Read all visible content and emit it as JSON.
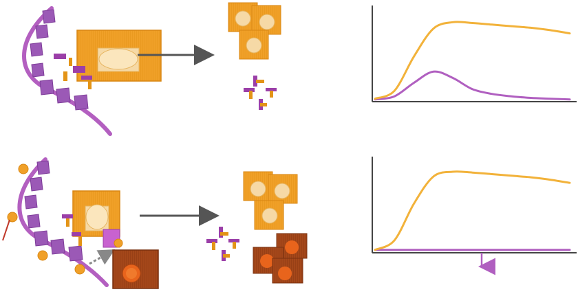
{
  "colors": {
    "strand": "#b35fc0",
    "strand_dark": "#8a3d96",
    "tile_purple": "#9b59b6",
    "orange": "#f0a028",
    "orange_dark": "#d98612",
    "cell_light": "#f6d9a6",
    "brown": "#a4471a",
    "brown_dark": "#7a3210",
    "brown_nucleus": "#e8641c",
    "arrow": "#555555",
    "axis": "#444444",
    "curve_orange": "#f2b23a",
    "curve_purple": "#b05fc0",
    "dotted_arrow": "#888888",
    "marker": "#c0392b"
  },
  "icons": {
    "top_strand": "dna-helix-icon",
    "bottom_strand": "modified-dna-helix-icon",
    "cell": "cell-icon",
    "fragment": "fragment-icon",
    "sphere": "nanoparticle-icon",
    "process_arrow": "right-arrow-icon",
    "down_arrow": "down-arrow-icon"
  },
  "chart_data": [
    {
      "type": "line",
      "x": [
        0,
        1,
        2,
        3,
        4,
        5,
        6,
        7,
        8,
        9,
        10
      ],
      "ylim": [
        0,
        1
      ],
      "series": [
        {
          "color": "#f2b23a",
          "values": [
            0.02,
            0.12,
            0.55,
            0.9,
            0.98,
            0.97,
            0.95,
            0.93,
            0.91,
            0.88,
            0.84
          ]
        },
        {
          "color": "#b05fc0",
          "values": [
            0.01,
            0.05,
            0.22,
            0.36,
            0.28,
            0.14,
            0.08,
            0.05,
            0.03,
            0.02,
            0.01
          ]
        }
      ]
    },
    {
      "type": "line",
      "x": [
        0,
        1,
        2,
        3,
        4,
        5,
        6,
        7,
        8,
        9,
        10
      ],
      "ylim": [
        0,
        1
      ],
      "series": [
        {
          "color": "#f2b23a",
          "values": [
            0.02,
            0.14,
            0.6,
            0.94,
            1.0,
            0.99,
            0.97,
            0.95,
            0.93,
            0.9,
            0.86
          ]
        },
        {
          "color": "#b05fc0",
          "values": [
            0.02,
            0.02,
            0.02,
            0.02,
            0.02,
            0.02,
            0.02,
            0.02,
            0.02,
            0.02,
            0.02
          ]
        }
      ]
    }
  ]
}
